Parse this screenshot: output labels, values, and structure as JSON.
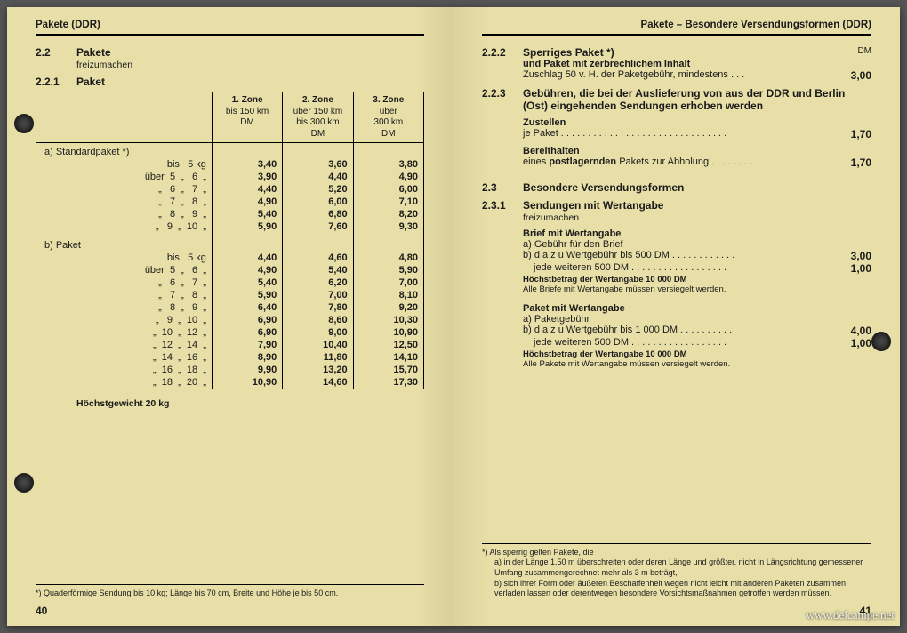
{
  "left": {
    "header": "Pakete (DDR)",
    "sec22_num": "2.2",
    "sec22_title": "Pakete",
    "sec22_sub": "freizumachen",
    "sec221_num": "2.2.1",
    "sec221_title": "Paket",
    "zone_headers": [
      {
        "title": "1. Zone",
        "sub": "bis 150 km",
        "unit": "DM"
      },
      {
        "title": "2. Zone",
        "sub": "über 150 km\nbis 300 km",
        "unit": "DM"
      },
      {
        "title": "3. Zone",
        "sub": "über\n300 km",
        "unit": "DM"
      }
    ],
    "group_a_label": "a)  Standardpaket *)",
    "group_b_label": "b)  Paket",
    "weights_a": [
      "bis   5 kg",
      "über  5  „   6  „",
      "„   6  „   7  „",
      "„   7  „   8  „",
      "„   8  „   9  „",
      "„   9  „  10  „"
    ],
    "prices_a": [
      [
        "3,40",
        "3,60",
        "3,80"
      ],
      [
        "3,90",
        "4,40",
        "4,90"
      ],
      [
        "4,40",
        "5,20",
        "6,00"
      ],
      [
        "4,90",
        "6,00",
        "7,10"
      ],
      [
        "5,40",
        "6,80",
        "8,20"
      ],
      [
        "5,90",
        "7,60",
        "9,30"
      ]
    ],
    "weights_b": [
      "bis   5 kg",
      "über  5  „   6  „",
      "„   6  „   7  „",
      "„   7  „   8  „",
      "„   8  „   9  „",
      "„   9  „  10  „",
      "„  10  „  12  „",
      "„  12  „  14  „",
      "„  14  „  16  „",
      "„  16  „  18  „",
      "„  18  „  20  „"
    ],
    "prices_b": [
      [
        "4,40",
        "4,60",
        "4,80"
      ],
      [
        "4,90",
        "5,40",
        "5,90"
      ],
      [
        "5,40",
        "6,20",
        "7,00"
      ],
      [
        "5,90",
        "7,00",
        "8,10"
      ],
      [
        "6,40",
        "7,80",
        "9,20"
      ],
      [
        "6,90",
        "8,60",
        "10,30"
      ],
      [
        "6,90",
        "9,00",
        "10,90"
      ],
      [
        "7,90",
        "10,40",
        "12,50"
      ],
      [
        "8,90",
        "11,80",
        "14,10"
      ],
      [
        "9,90",
        "13,20",
        "15,70"
      ],
      [
        "10,90",
        "14,60",
        "17,30"
      ]
    ],
    "max_weight": "Höchstgewicht 20 kg",
    "footnote": "*) Quaderförmige Sendung bis 10 kg; Länge bis 70 cm, Breite und Höhe je bis 50 cm.",
    "page_num": "40"
  },
  "right": {
    "header": "Pakete – Besondere Versendungsformen (DDR)",
    "dm_label": "DM",
    "s222_num": "2.2.2",
    "s222_title": "Sperriges Paket *)",
    "s222_line2": "und Paket mit zerbrechlichem Inhalt",
    "s222_text": "Zuschlag 50 v. H. der Paketgebühr, mindestens . . .",
    "s222_price": "3,00",
    "s223_num": "2.2.3",
    "s223_title": "Gebühren, die bei der Auslieferung von aus der DDR und Berlin (Ost) eingehenden Sendungen erhoben werden",
    "zustellen_lbl": "Zustellen",
    "zustellen_txt": "je Paket  . . . . . . . . . . . . . . . . . . . . . . . . . . . . . . .",
    "zustellen_price": "1,70",
    "bereit_lbl": "Bereithalten",
    "bereit_txt": "eines postlagernden Pakets zur Abholung . . . . . . . .",
    "bereit_price": "1,70",
    "s23_num": "2.3",
    "s23_title": "Besondere Versendungsformen",
    "s231_num": "2.3.1",
    "s231_title": "Sendungen mit Wertangabe",
    "s231_sub": "freizumachen",
    "brief_title": "Brief mit Wertangabe",
    "brief_a": "a)  Gebühr für den Brief",
    "brief_b": "b)  d a z u  Wertgebühr bis 500 DM  . . . . . . . . . . . .",
    "brief_b_price": "3,00",
    "brief_b2": "jede weiteren 500 DM  . . . . . . . . . . . . . . . . . .",
    "brief_b2_price": "1,00",
    "brief_note1": "Höchstbetrag der Wertangabe 10 000 DM",
    "brief_note2": "Alle Briefe mit Wertangabe müssen versiegelt werden.",
    "paket_title": "Paket mit Wertangabe",
    "paket_a": "a)  Paketgebühr",
    "paket_b": "b)  d a z u  Wertgebühr bis 1 000 DM  . . . . . . . . . .",
    "paket_b_price": "4,00",
    "paket_b2": "jede weiteren 500 DM  . . . . . . . . . . . . . . . . . .",
    "paket_b2_price": "1,00",
    "paket_note1": "Höchstbetrag der Wertangabe 10 000 DM",
    "paket_note2": "Alle Pakete mit Wertangabe müssen versiegelt werden.",
    "footnote_lead": "*)  Als sperrig gelten Pakete, die",
    "footnote_a": "a)  in der Länge 1,50 m überschreiten oder deren Länge und größter, nicht in Längsrichtung gemessener Umfang zusammengerechnet mehr als 3 m beträgt,",
    "footnote_b": "b)  sich ihrer Form oder äußeren Beschaffenheit wegen nicht leicht mit anderen Paketen zusammen verladen lassen oder derentwegen besondere Vorsichtsmaßnahmen getroffen werden müssen.",
    "page_num": "41"
  },
  "watermark": "www.delcampe.net",
  "colors": {
    "paper": "#e8dfa8",
    "text": "#1a1a1a"
  }
}
